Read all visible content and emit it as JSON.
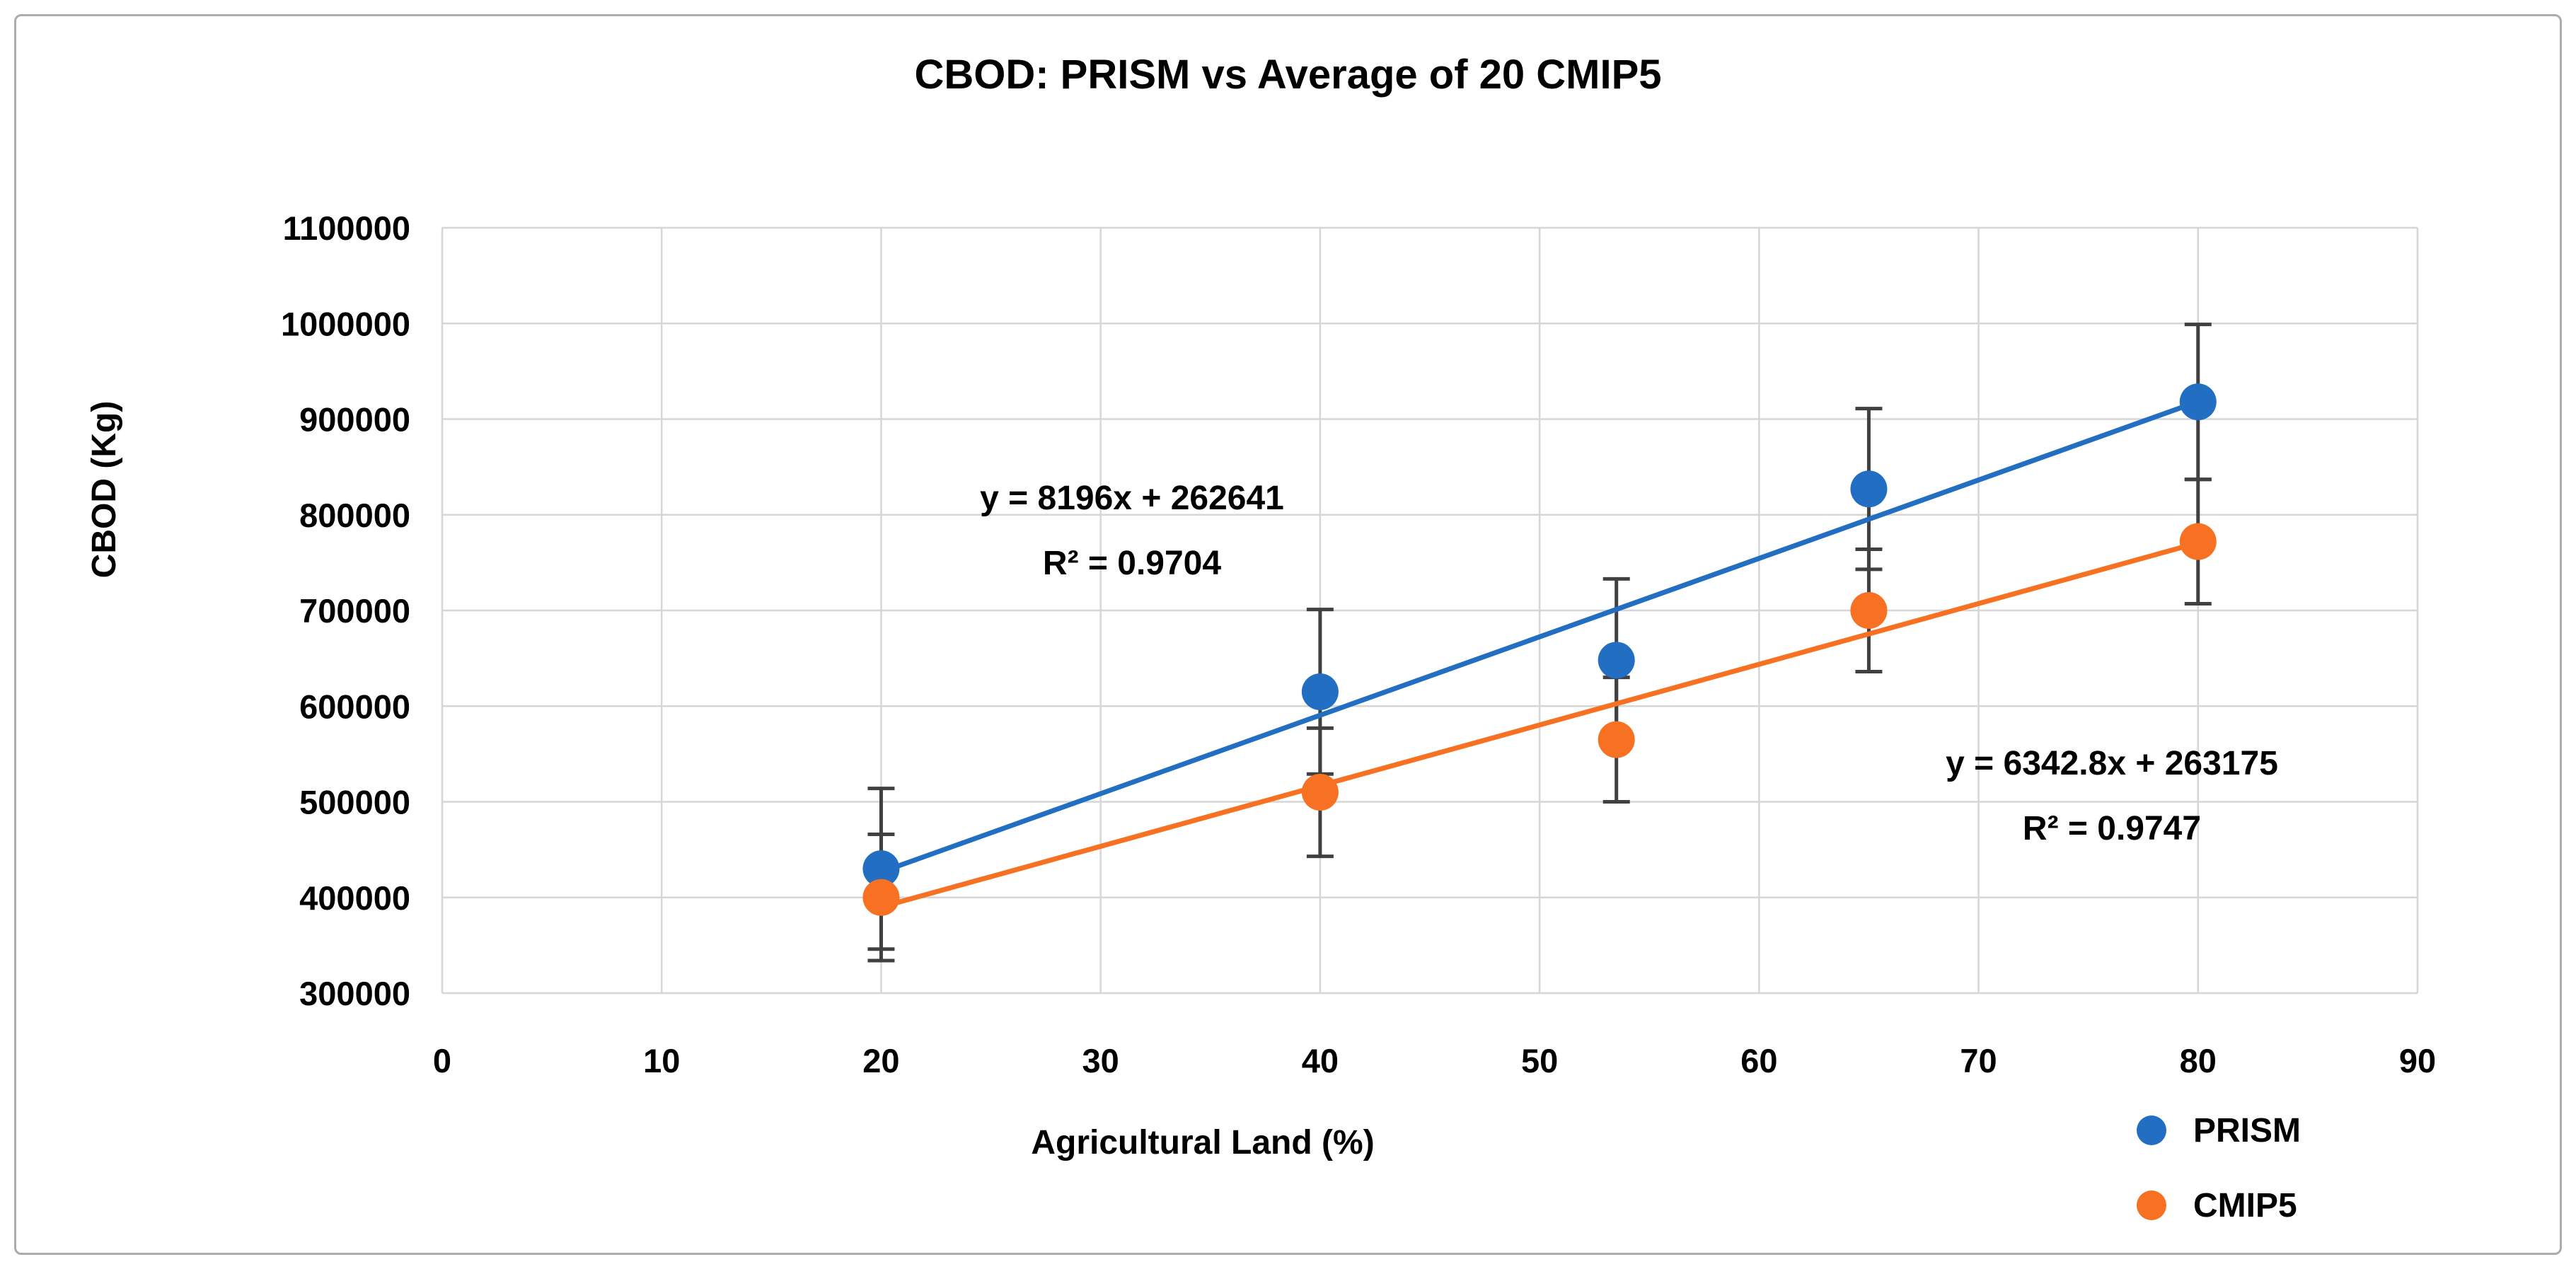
{
  "title": "CBOD: PRISM vs Average of 20 CMIP5",
  "chart_data": {
    "type": "scatter",
    "title": "CBOD: PRISM vs Average of 20 CMIP5",
    "xlabel": "Agricultural Land (%)",
    "ylabel": "CBOD (Kg)",
    "x_range": [
      0,
      90
    ],
    "y_range": [
      300000,
      1100000
    ],
    "x_ticks": [
      0,
      10,
      20,
      30,
      40,
      50,
      60,
      70,
      80,
      90
    ],
    "y_ticks": [
      300000,
      400000,
      500000,
      600000,
      700000,
      800000,
      900000,
      1000000,
      1100000
    ],
    "grid": true,
    "legend_position": "bottom-right",
    "colors": {
      "grid": "#d6d6d6",
      "error_bar": "#404040",
      "prism": "#226ec3",
      "cmip5": "#f87122"
    },
    "series": [
      {
        "name": "PRISM",
        "color": "#226ec3",
        "x": [
          20,
          40,
          53.5,
          65,
          80
        ],
        "y": [
          430000,
          615000,
          648000,
          827000,
          918000
        ],
        "y_err": [
          84000,
          86000,
          85000,
          84000,
          81000
        ],
        "trendline": {
          "slope": 8196,
          "intercept": 262641,
          "x_start": 20,
          "x_end": 80,
          "equation": "y = 8196x + 262641",
          "r2_label": "R² = 0.9704"
        }
      },
      {
        "name": "CMIP5",
        "color": "#f87122",
        "x": [
          20,
          40,
          53.5,
          65,
          80
        ],
        "y": [
          400000,
          510000,
          565000,
          700000,
          772000
        ],
        "y_err": [
          66000,
          67000,
          65000,
          64000,
          65000
        ],
        "trendline": {
          "slope": 6342.8,
          "intercept": 263175,
          "x_start": 20,
          "x_end": 80,
          "equation": "y = 6342.8x + 263175",
          "r2_label": "R² = 0.9747"
        }
      }
    ]
  }
}
